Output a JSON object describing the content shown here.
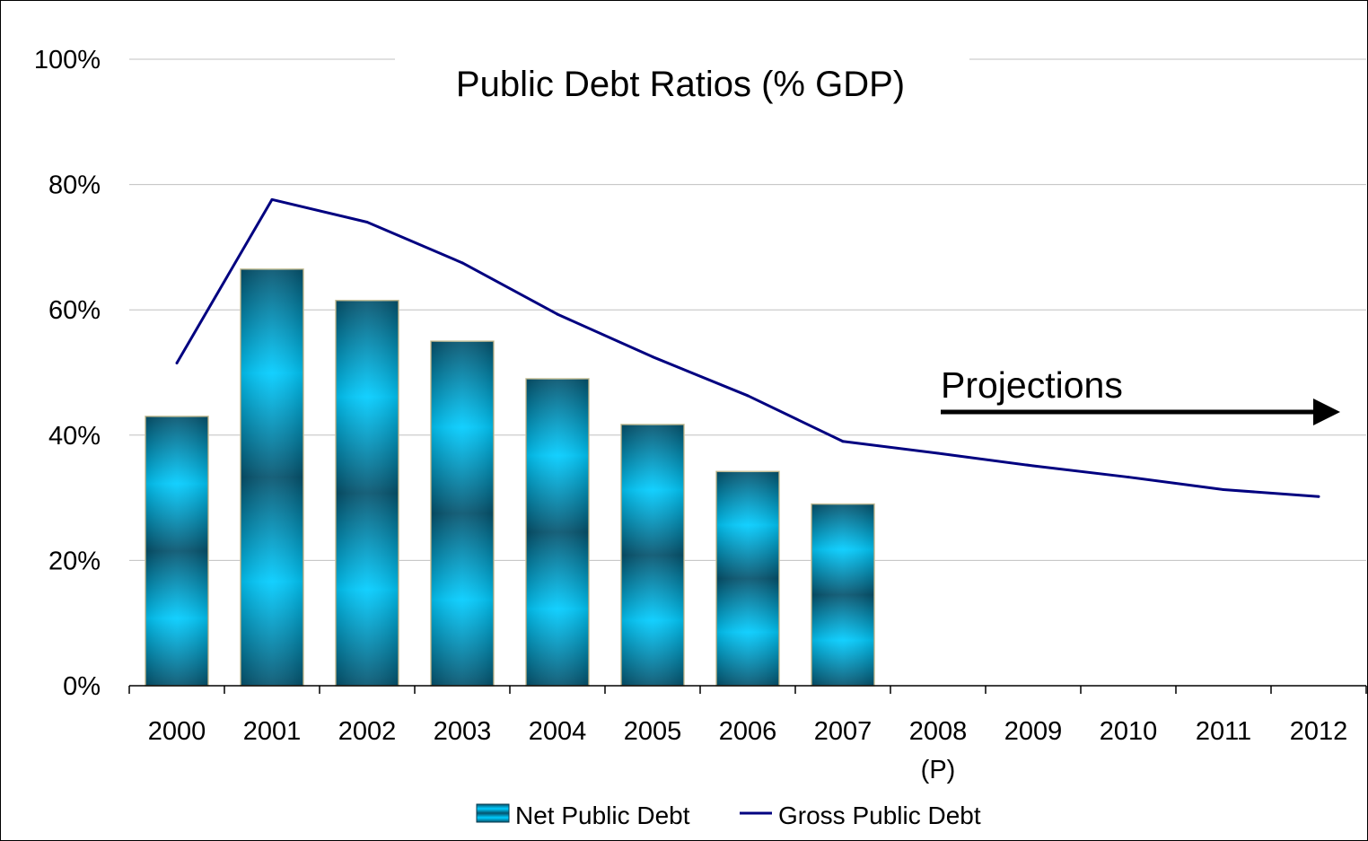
{
  "chart_data": {
    "type": "bar",
    "title": "Public Debt Ratios (% GDP)",
    "xlabel": "",
    "ylabel": "",
    "ylim": [
      0,
      100
    ],
    "y_ticks": [
      "0%",
      "20%",
      "40%",
      "60%",
      "80%",
      "100%"
    ],
    "y_tick_values": [
      0,
      20,
      40,
      60,
      80,
      100
    ],
    "grid": true,
    "categories": [
      "2000",
      "2001",
      "2002",
      "2003",
      "2004",
      "2005",
      "2006",
      "2007",
      "2008",
      "2009",
      "2010",
      "2011",
      "2012"
    ],
    "category_sublabels": [
      "",
      "",
      "",
      "",
      "",
      "",
      "",
      "",
      "(P)",
      "",
      "",
      "",
      ""
    ],
    "series": [
      {
        "name": "Net Public Debt",
        "type": "bar",
        "values": [
          43,
          66.5,
          61.5,
          55,
          49,
          41.7,
          34.2,
          29,
          null,
          null,
          null,
          null,
          null
        ]
      },
      {
        "name": "Gross Public Debt",
        "type": "line",
        "values": [
          51.5,
          77.6,
          74,
          67.5,
          59.3,
          52.5,
          46.3,
          39,
          37.1,
          35.1,
          33.3,
          31.3,
          30.2
        ]
      }
    ],
    "annotation": {
      "text": "Projections",
      "arrow": "right"
    },
    "legend_position": "bottom",
    "colors": {
      "bar_dark": "#04536e",
      "bar_light": "#00ccff",
      "line": "#000080",
      "grid": "#c0c0c0",
      "axis": "#000000"
    }
  }
}
